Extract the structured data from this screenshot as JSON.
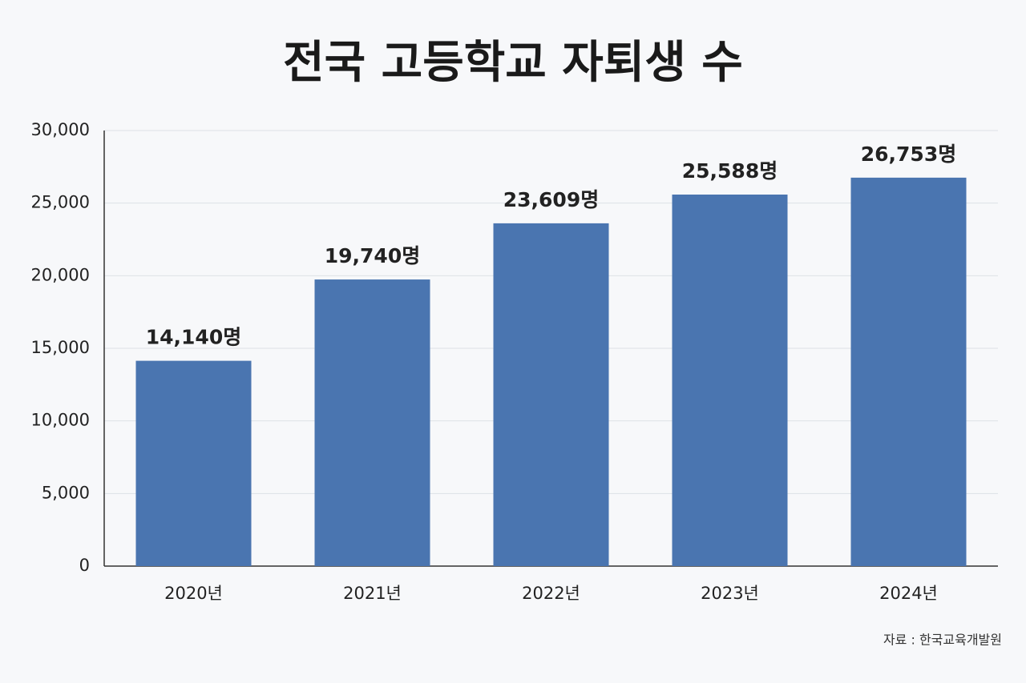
{
  "chart_data": {
    "type": "bar",
    "title": "전국 고등학교 자퇴생 수",
    "categories": [
      "2020년",
      "2021년",
      "2022년",
      "2023년",
      "2024년"
    ],
    "values": [
      14140,
      19740,
      23609,
      25588,
      26753
    ],
    "value_labels": [
      "14,140명",
      "19,740명",
      "23,609명",
      "25,588명",
      "26,753명"
    ],
    "color": "#4a75b0",
    "ylim": [
      0,
      30000
    ],
    "yticks": [
      0,
      {
        "value": 5000,
        "label": "5,000"
      },
      {
        "value": 10000,
        "label": "10,000"
      },
      {
        "value": 15000,
        "label": "15,000"
      },
      {
        "value": 20000,
        "label": "20,000"
      },
      {
        "value": 25000,
        "label": "25,000"
      },
      {
        "value": 30000,
        "label": "30,000"
      }
    ],
    "grid": true,
    "source": "자료 : 한국교육개발원"
  }
}
